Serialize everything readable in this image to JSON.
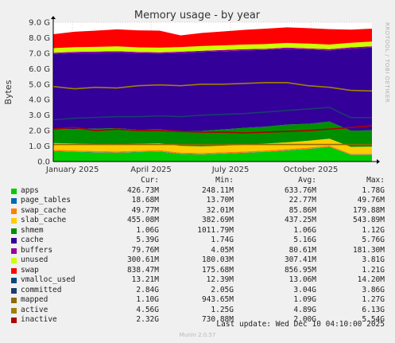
{
  "chart_data": {
    "type": "area",
    "title": "Memory usage - by year",
    "ylabel": "Bytes",
    "side_label": "RRDTOOL / TOBI OETIKER",
    "ylim": [
      0,
      9000000000
    ],
    "y_ticks": [
      {
        "value": 0,
        "label": "0.0"
      },
      {
        "value": 1000000000,
        "label": "1.0 G"
      },
      {
        "value": 2000000000,
        "label": "2.0 G"
      },
      {
        "value": 3000000000,
        "label": "3.0 G"
      },
      {
        "value": 4000000000,
        "label": "4.0 G"
      },
      {
        "value": 5000000000,
        "label": "5.0 G"
      },
      {
        "value": 6000000000,
        "label": "6.0 G"
      },
      {
        "value": 7000000000,
        "label": "7.0 G"
      },
      {
        "value": 8000000000,
        "label": "8.0 G"
      },
      {
        "value": 9000000000,
        "label": "9.0 G"
      }
    ],
    "x_range": [
      "2024-12-10",
      "2025-12-10"
    ],
    "x_ticks": [
      {
        "date": "2025-01-01",
        "label": "January 2025"
      },
      {
        "date": "2025-04-01",
        "label": "April 2025"
      },
      {
        "date": "2025-07-01",
        "label": "July 2025"
      },
      {
        "date": "2025-10-01",
        "label": "October 2025"
      }
    ],
    "stacked_series": [
      {
        "name": "apps",
        "color": "#00cc00",
        "values": [
          0.66,
          0.62,
          0.58,
          0.56,
          0.6,
          0.64,
          0.48,
          0.45,
          0.5,
          0.55,
          0.62,
          0.7,
          0.8,
          0.93,
          0.43,
          0.43
        ]
      },
      {
        "name": "page_tables",
        "color": "#0066b3",
        "values": [
          0.02,
          0.02,
          0.02,
          0.02,
          0.02,
          0.02,
          0.02,
          0.02,
          0.02,
          0.02,
          0.02,
          0.02,
          0.02,
          0.02,
          0.02,
          0.02
        ]
      },
      {
        "name": "swap_cache",
        "color": "#ff8000",
        "values": [
          0.08,
          0.08,
          0.08,
          0.08,
          0.08,
          0.08,
          0.08,
          0.08,
          0.08,
          0.08,
          0.08,
          0.08,
          0.08,
          0.08,
          0.05,
          0.05
        ]
      },
      {
        "name": "slab_cache",
        "color": "#ffcc00",
        "values": [
          0.44,
          0.44,
          0.45,
          0.45,
          0.45,
          0.44,
          0.44,
          0.43,
          0.43,
          0.43,
          0.44,
          0.44,
          0.44,
          0.45,
          0.45,
          0.46
        ]
      },
      {
        "name": "shmem",
        "color": "#008f00",
        "values": [
          0.9,
          0.95,
          1.0,
          1.05,
          0.9,
          0.9,
          0.95,
          1.0,
          1.05,
          1.1,
          1.1,
          1.15,
          1.1,
          1.1,
          1.05,
          1.06
        ]
      },
      {
        "name": "cache",
        "color": "#330099",
        "values": [
          4.85,
          4.9,
          4.9,
          4.9,
          4.95,
          4.9,
          5.05,
          5.1,
          5.05,
          5.0,
          4.95,
          4.9,
          4.8,
          4.6,
          5.3,
          5.35
        ]
      },
      {
        "name": "buffers",
        "color": "#990099",
        "values": [
          0.08,
          0.08,
          0.08,
          0.08,
          0.08,
          0.08,
          0.08,
          0.08,
          0.08,
          0.08,
          0.08,
          0.08,
          0.08,
          0.08,
          0.08,
          0.08
        ]
      },
      {
        "name": "unused",
        "color": "#ccff00",
        "values": [
          0.3,
          0.3,
          0.3,
          0.3,
          0.3,
          0.3,
          0.3,
          0.3,
          0.3,
          0.3,
          0.3,
          0.3,
          0.3,
          0.3,
          0.3,
          0.3
        ]
      },
      {
        "name": "swap",
        "color": "#ff0000",
        "values": [
          0.9,
          1.0,
          1.05,
          1.1,
          1.1,
          1.1,
          0.75,
          0.85,
          0.9,
          0.95,
          1.0,
          1.0,
          1.0,
          1.0,
          0.84,
          0.84
        ]
      }
    ],
    "line_series": [
      {
        "name": "committed",
        "color": "#1a3e6c",
        "values": [
          2.7,
          2.8,
          2.85,
          2.9,
          2.9,
          2.95,
          2.9,
          3.0,
          3.05,
          3.1,
          3.2,
          3.3,
          3.4,
          3.5,
          2.84,
          2.84
        ]
      },
      {
        "name": "mapped",
        "color": "#8f6b00",
        "values": [
          1.1,
          1.1,
          1.1,
          1.1,
          1.1,
          1.1,
          1.1,
          1.1,
          1.1,
          1.1,
          1.1,
          1.1,
          1.1,
          1.1,
          1.1,
          1.1
        ]
      },
      {
        "name": "active",
        "color": "#a08000",
        "values": [
          4.85,
          4.7,
          4.8,
          4.75,
          4.9,
          4.95,
          4.9,
          5.0,
          5.0,
          5.05,
          5.1,
          5.1,
          4.9,
          4.8,
          4.6,
          4.56
        ]
      },
      {
        "name": "inactive",
        "color": "#b00000",
        "values": [
          2.1,
          2.2,
          2.0,
          2.1,
          2.0,
          2.0,
          1.95,
          1.9,
          1.9,
          1.85,
          1.9,
          1.95,
          2.0,
          2.1,
          2.2,
          2.32
        ]
      }
    ],
    "grid": true
  },
  "legend": {
    "headers": {
      "cur": "Cur:",
      "min": "Min:",
      "avg": "Avg:",
      "max": "Max:"
    },
    "rows": [
      {
        "name": "apps",
        "color": "#00cc00",
        "cur": "426.73M",
        "min": "248.11M",
        "avg": "633.76M",
        "max": "1.78G"
      },
      {
        "name": "page_tables",
        "color": "#0066b3",
        "cur": "18.68M",
        "min": "13.70M",
        "avg": "22.77M",
        "max": "49.76M"
      },
      {
        "name": "swap_cache",
        "color": "#ff8000",
        "cur": "49.77M",
        "min": "32.01M",
        "avg": "85.86M",
        "max": "179.88M"
      },
      {
        "name": "slab_cache",
        "color": "#ffcc00",
        "cur": "455.08M",
        "min": "382.69M",
        "avg": "437.25M",
        "max": "543.89M"
      },
      {
        "name": "shmem",
        "color": "#008f00",
        "cur": "1.06G",
        "min": "1011.79M",
        "avg": "1.06G",
        "max": "1.12G"
      },
      {
        "name": "cache",
        "color": "#330099",
        "cur": "5.39G",
        "min": "1.74G",
        "avg": "5.16G",
        "max": "5.76G"
      },
      {
        "name": "buffers",
        "color": "#990099",
        "cur": "79.76M",
        "min": "4.05M",
        "avg": "80.61M",
        "max": "181.30M"
      },
      {
        "name": "unused",
        "color": "#ccff00",
        "cur": "300.61M",
        "min": "180.03M",
        "avg": "307.41M",
        "max": "3.81G"
      },
      {
        "name": "swap",
        "color": "#ff0000",
        "cur": "838.47M",
        "min": "175.68M",
        "avg": "856.95M",
        "max": "1.21G"
      },
      {
        "name": "vmalloc_used",
        "color": "#00487d",
        "cur": "13.21M",
        "min": "12.39M",
        "avg": "13.06M",
        "max": "14.20M"
      },
      {
        "name": "committed",
        "color": "#1a3e6c",
        "cur": "2.84G",
        "min": "2.05G",
        "avg": "3.04G",
        "max": "3.86G"
      },
      {
        "name": "mapped",
        "color": "#8f6b00",
        "cur": "1.10G",
        "min": "943.65M",
        "avg": "1.09G",
        "max": "1.27G"
      },
      {
        "name": "active",
        "color": "#a08000",
        "cur": "4.56G",
        "min": "1.25G",
        "avg": "4.89G",
        "max": "6.13G"
      },
      {
        "name": "inactive",
        "color": "#b00000",
        "cur": "2.32G",
        "min": "730.88M",
        "avg": "2.00G",
        "max": "5.54G"
      }
    ]
  },
  "footer": {
    "last_update": "Last update: Wed Dec 10 04:10:00 2025",
    "munin": "Munin 2.0.57"
  }
}
